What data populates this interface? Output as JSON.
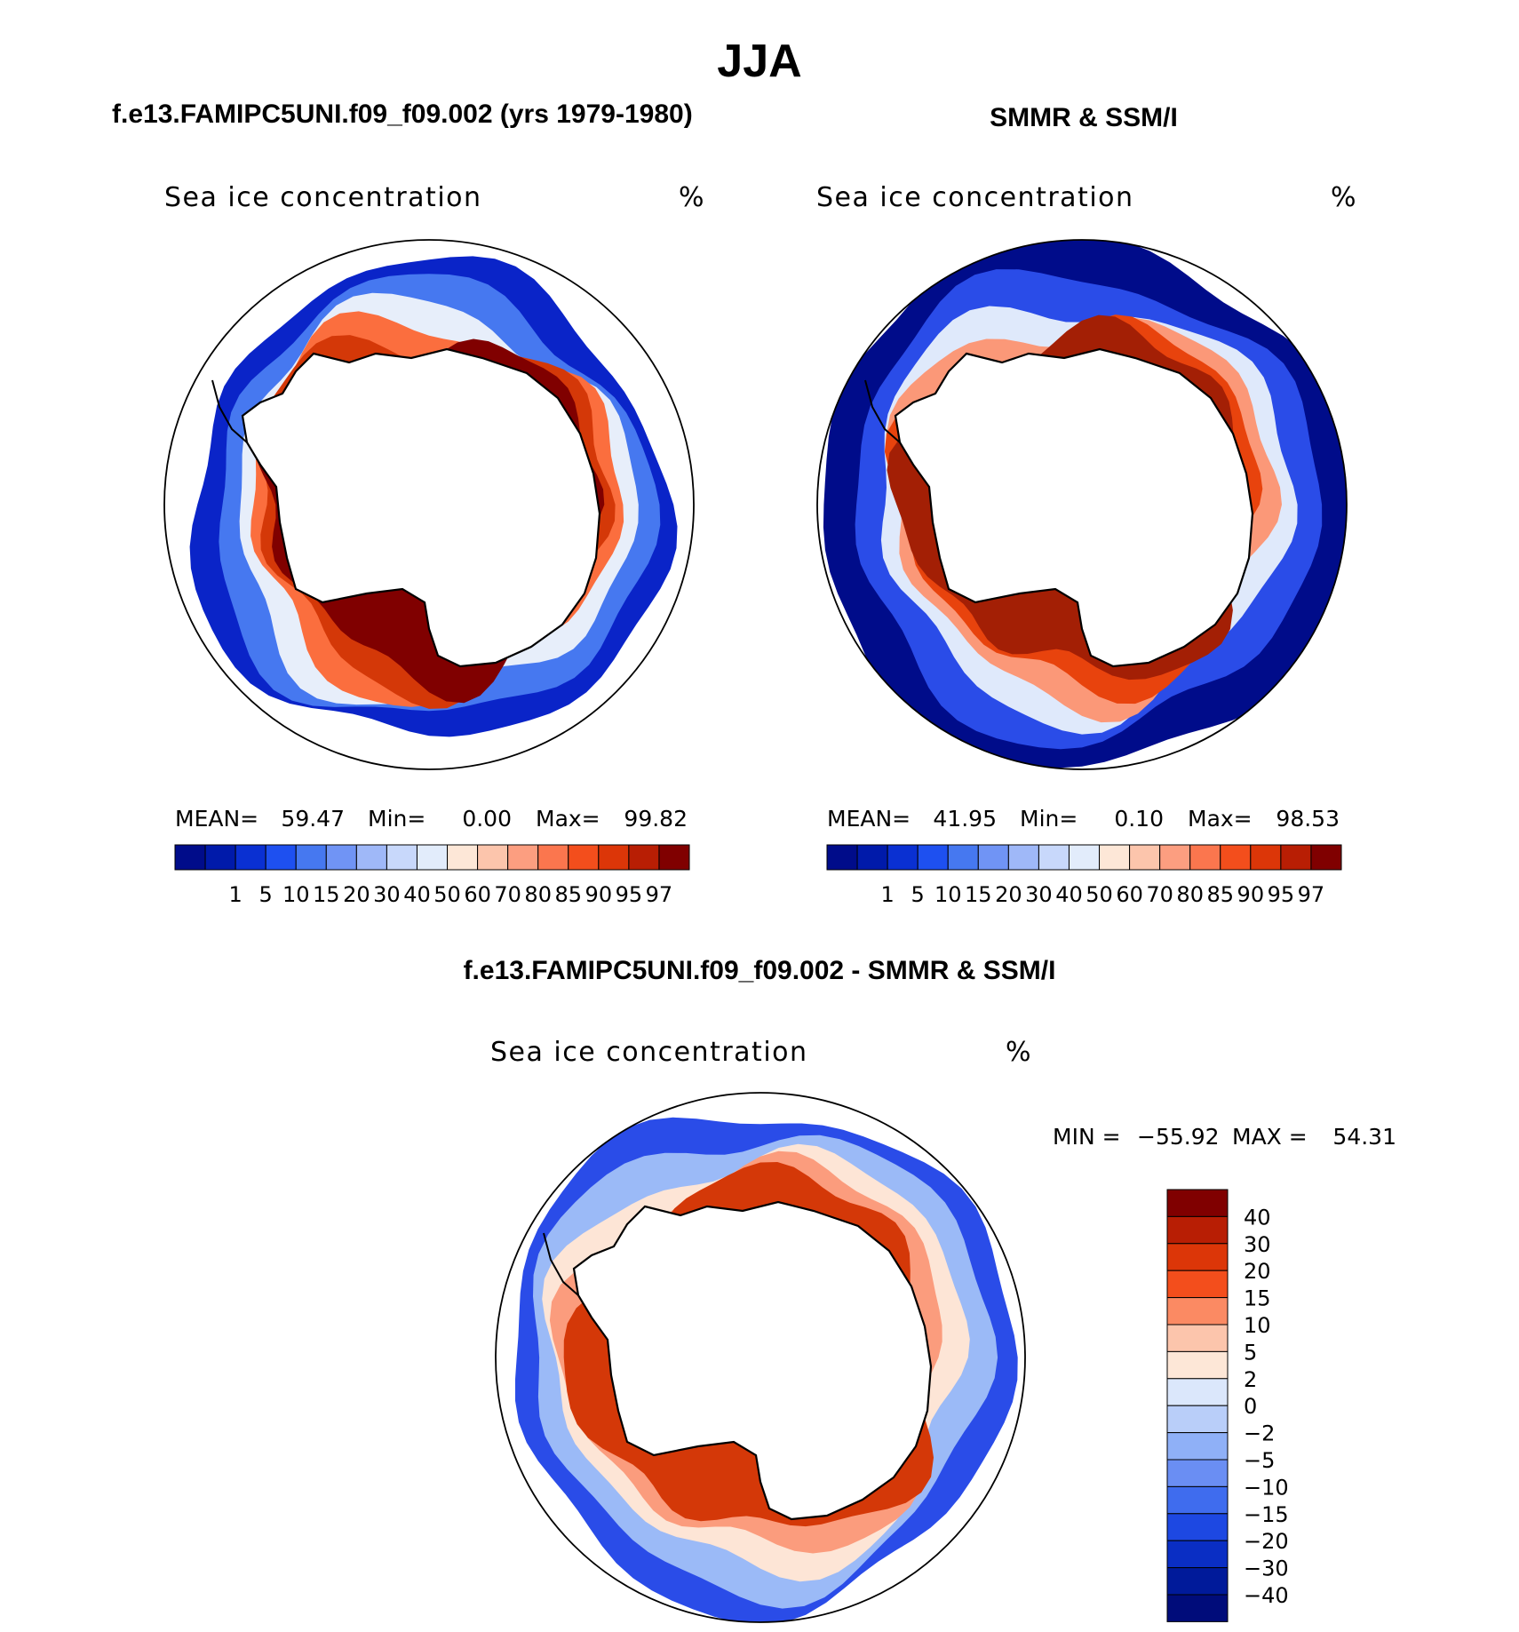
{
  "figure_title": "JJA",
  "chart_data": [
    {
      "type": "heatmap",
      "projection": "south polar stereographic",
      "panel_title": "f.e13.FAMIPC5UNI.f09_f09.002 (yrs 1979-1980)",
      "variable": "Sea ice concentration",
      "units": "%",
      "stats": {
        "mean_label": "MEAN=",
        "mean": "59.47",
        "min_label": "Min=",
        "min": "0.00",
        "max_label": "Max=",
        "max": "99.82"
      },
      "bands": [
        {
          "level": 97,
          "fill": "#800000"
        },
        {
          "level": 90,
          "fill": "#d43808"
        },
        {
          "level": 70,
          "fill": "#fb6e3e"
        },
        {
          "level": 40,
          "fill": "#e7eefa"
        },
        {
          "level": 15,
          "fill": "#4678f0"
        },
        {
          "level": 1,
          "fill": "#0a24c8"
        }
      ]
    },
    {
      "type": "heatmap",
      "projection": "south polar stereographic",
      "panel_title": "SMMR & SSM/I",
      "variable": "Sea ice concentration",
      "units": "%",
      "stats": {
        "mean_label": "MEAN=",
        "mean": "41.95",
        "min_label": "Min=",
        "min": "0.10",
        "max_label": "Max=",
        "max": "98.53"
      },
      "bands": [
        {
          "level": 95,
          "fill": "#a31f05"
        },
        {
          "level": 85,
          "fill": "#e8430d"
        },
        {
          "level": 60,
          "fill": "#fb9878"
        },
        {
          "level": 40,
          "fill": "#dfe9fb"
        },
        {
          "level": 10,
          "fill": "#2a4ce8"
        },
        {
          "level": 1,
          "fill": "#000c8a"
        }
      ]
    },
    {
      "type": "heatmap",
      "projection": "south polar stereographic",
      "panel_title": "f.e13.FAMIPC5UNI.f09_f09.002 - SMMR & SSM/I",
      "variable": "Sea ice concentration",
      "units": "%",
      "stats": {
        "min_label": "MIN =",
        "min": "−55.92",
        "max_label": "MAX =",
        "max": "54.31"
      },
      "bands": [
        {
          "level": 20,
          "fill": "#d43808"
        },
        {
          "level": 10,
          "fill": "#fb9c7d"
        },
        {
          "level": 2,
          "fill": "#fde5d6"
        },
        {
          "level": -5,
          "fill": "#9bbaf7"
        },
        {
          "level": -15,
          "fill": "#2a4ce8"
        }
      ]
    }
  ],
  "colorbar_main": {
    "colors": [
      "#000c8a",
      "#001aaa",
      "#0a30d2",
      "#1e50f0",
      "#4678f0",
      "#7094f5",
      "#9fb8f8",
      "#c8d8fb",
      "#e2ecfb",
      "#fde7d7",
      "#fcc5ac",
      "#fc9e80",
      "#fb764e",
      "#f34e1c",
      "#dc3608",
      "#b81e04",
      "#800000"
    ],
    "labels": [
      "1",
      "5",
      "10",
      "15",
      "20",
      "30",
      "40",
      "50",
      "60",
      "70",
      "80",
      "85",
      "90",
      "95",
      "97"
    ]
  },
  "colorbar_diff": {
    "colors": [
      "#800000",
      "#b81e04",
      "#dc3608",
      "#f34e1c",
      "#fb8a63",
      "#fcc5ac",
      "#fde7d7",
      "#dbe7fb",
      "#b9cef9",
      "#8fb0f7",
      "#6a8ef3",
      "#3f6cee",
      "#1d48e2",
      "#0a2ec4",
      "#001a9a",
      "#000c7a"
    ],
    "labels": [
      "40",
      "30",
      "20",
      "15",
      "10",
      "5",
      "2",
      "0",
      "−2",
      "−5",
      "−10",
      "−15",
      "−20",
      "−30",
      "−40"
    ]
  },
  "colors": {
    "land": "#ffffff",
    "coast": "#000000",
    "frame": "#000000"
  }
}
